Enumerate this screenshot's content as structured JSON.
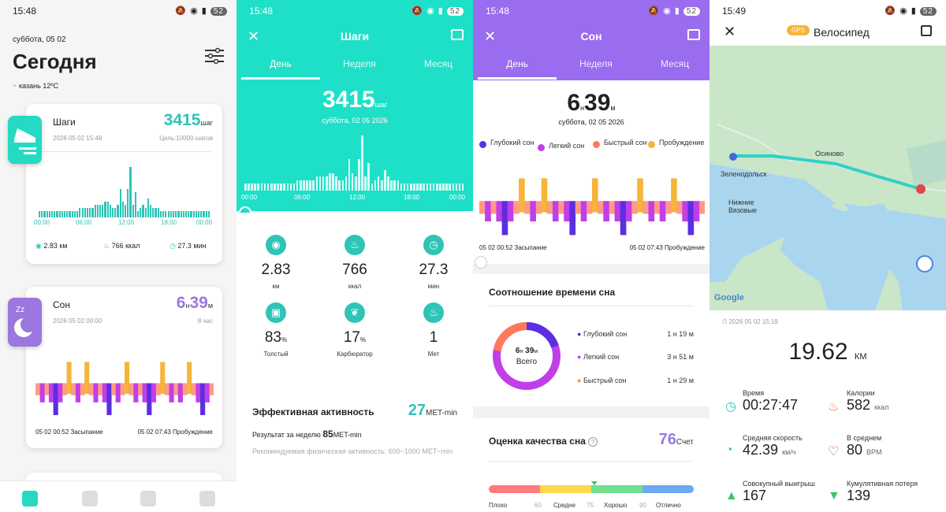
{
  "status": [
    {
      "time": "15:48",
      "battery": "52"
    },
    {
      "time": "15:48",
      "battery": "52"
    },
    {
      "time": "15:48",
      "battery": "52"
    },
    {
      "time": "15:49",
      "battery": "52"
    }
  ],
  "today": {
    "date": "суббота, 05 02",
    "title": "Сегодня",
    "weather": "казань 12ºC",
    "steps": {
      "title": "Шаги",
      "value": "3415",
      "unit": "шаг",
      "timestamp": "2026 05 02 15:48",
      "goal": "Цель:10000 шагов",
      "ticks": [
        "00:00",
        "06:00",
        "12:00",
        "18:00",
        "00:00"
      ],
      "distance": "2.83 км",
      "calories": "766 ккал",
      "duration": "27.3 мин"
    },
    "sleep": {
      "title": "Сон",
      "hours": "6",
      "h": "н",
      "minutes": "39",
      "m": "м",
      "timestamp": "2026 05 02 00:00",
      "goal": "8 час",
      "start": "05 02 00:52 Засыпание",
      "end": "05 02 07:43 Пробуждение"
    }
  },
  "steps_detail": {
    "title": "Шаги",
    "tabs": [
      "День",
      "Неделя",
      "Месяц"
    ],
    "value": "3415",
    "unit": "шаг",
    "date": "суббота, 02 05 2026",
    "ticks": [
      "00:00",
      "06:00",
      "12:00",
      "18:00",
      "00:00"
    ],
    "metrics": [
      {
        "v": "2.83",
        "u": "км",
        "c": "#2ec4b6"
      },
      {
        "v": "766",
        "u": "ккал",
        "c": "#2ec4b6"
      },
      {
        "v": "27.3",
        "u": "мин",
        "c": "#2ec4b6"
      },
      {
        "v": "83",
        "s": "%",
        "u": "Толстый",
        "c": "#2ec4b6"
      },
      {
        "v": "17",
        "s": "%",
        "u": "Карбюратор",
        "c": "#2ec4b6"
      },
      {
        "v": "1",
        "s": "",
        "u": "Мет",
        "c": "#2ec4b6"
      }
    ],
    "activity_title": "Эффективная активность",
    "activity_value": "27",
    "activity_unit": "MET-min",
    "week_label": "Результат за неделю",
    "week_value": "85",
    "week_unit": "MET-min",
    "recommend": "Рекомендуемая физическая активность: 600~1000 MET~min"
  },
  "sleep_detail": {
    "title": "Сон",
    "tabs": [
      "День",
      "Неделя",
      "Месяц"
    ],
    "hours": "6",
    "h": "н",
    "minutes": "39",
    "m": "м",
    "date": "суббота, 02 05 2026",
    "legend": [
      {
        "label": "Глубокий сон",
        "color": "#5b2ee0"
      },
      {
        "label": "Легкий сон",
        "color": "#c13ee8"
      },
      {
        "label": "Быстрый сон",
        "color": "#ff7a5c"
      },
      {
        "label": "Пробуждение",
        "color": "#f5b53a"
      }
    ],
    "start": "05 02 00:52 Засыпание",
    "end": "05 02 07:43 Пробуждение",
    "ratio_title": "Соотношение времени сна",
    "total_h": "6",
    "total_hu": "н",
    "total_m": "39",
    "total_mu": "м",
    "total_label": "Всего",
    "rows": [
      {
        "label": "Глубокий сон",
        "h": "1",
        "m": "19",
        "color": "#5b2ee0"
      },
      {
        "label": "Легкий сон",
        "h": "3",
        "m": "51",
        "color": "#c13ee8"
      },
      {
        "label": "Быстрый сон",
        "h": "1",
        "m": "29",
        "color": "#ff7a5c"
      }
    ],
    "quality_title": "Оценка качества сна",
    "score": "76",
    "score_unit": "Счет",
    "scale": [
      "Плохо",
      "60",
      "Средне",
      "75",
      "Хорошо",
      "90",
      "Отлично"
    ]
  },
  "bike": {
    "gps": "GPS",
    "title": "Велосипед",
    "places": [
      "Зеленодольск",
      "Осиново",
      "Нижние Вязовые"
    ],
    "google": "Google",
    "timestamp": "2026 05 02 15:19",
    "distance": "19.62",
    "distance_unit": "КМ",
    "stats": [
      {
        "k": "Время",
        "v": "00:27:47",
        "u": ""
      },
      {
        "k": "Калории",
        "v": "582",
        "u": "ккал"
      },
      {
        "k": "Средняя скорость",
        "v": "42.39",
        "u": "км/ч"
      },
      {
        "k": "В среднем",
        "v": "80",
        "u": "BPM"
      },
      {
        "k": "Совокупный выигрыш",
        "v": "167",
        "u": ""
      },
      {
        "k": "Кумулятивная потеря",
        "v": "139",
        "u": ""
      }
    ]
  },
  "colors": {
    "teal": "#1ee0c8",
    "purple": "#9a6cf0",
    "steps_accent": "#2ec4b6",
    "sleep_accent": "#9a78e0"
  }
}
